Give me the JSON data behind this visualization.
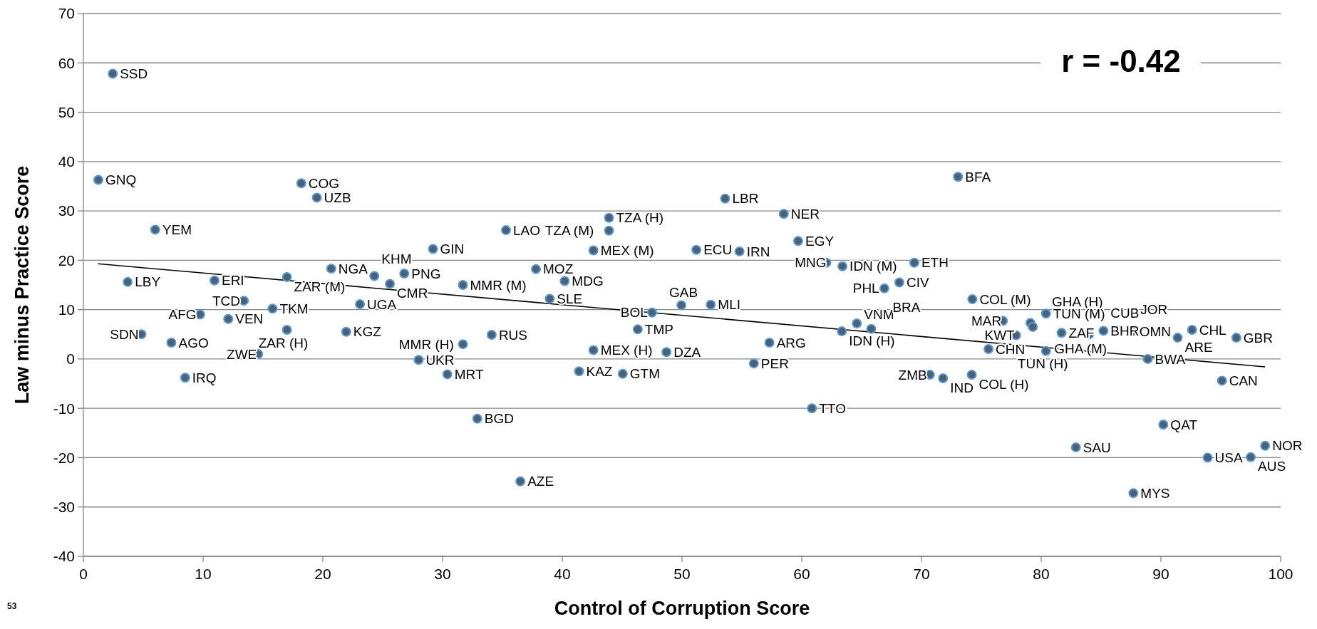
{
  "chart_data": {
    "type": "scatter",
    "xlabel": "Control of Corruption Score",
    "ylabel": "Law minus Practice Score",
    "xlim": [
      0,
      100
    ],
    "xticks": [
      0,
      10,
      20,
      30,
      40,
      50,
      60,
      70,
      80,
      90,
      100
    ],
    "ylim": [
      -40,
      70
    ],
    "yticks": [
      -40,
      -30,
      -20,
      -10,
      0,
      10,
      20,
      30,
      40,
      50,
      60,
      70
    ],
    "grid": "y",
    "marker": "circle",
    "annotations": [
      "r = -0.42",
      "53"
    ],
    "series": [
      {
        "color": "#4a6177",
        "x": [
          2.45,
          1.25,
          18.2,
          19.5,
          6.0,
          29.2,
          35.3,
          3.7,
          10.95,
          17.0,
          20.7,
          24.3,
          25.6,
          26.8,
          31.7,
          13.4,
          15.8,
          23.1,
          9.75,
          12.1,
          4.85,
          7.35,
          17.0,
          21.95,
          14.6,
          8.5,
          28.0,
          30.4,
          31.7,
          34.1,
          32.9,
          43.9,
          43.9,
          42.6,
          53.6,
          58.5,
          51.2,
          54.8,
          59.7,
          62.05,
          63.4,
          69.4,
          68.15,
          66.9,
          37.8,
          40.2,
          38.95,
          49.95,
          52.4,
          47.5,
          46.3,
          42.6,
          48.7,
          41.4,
          45.05,
          57.3,
          56.0,
          60.85,
          36.5,
          64.6,
          63.35,
          65.8,
          74.25,
          73.05,
          76.8,
          79.1,
          79.3,
          77.9,
          80.4,
          81.7,
          84.0,
          85.2,
          86.5,
          87.6,
          91.4,
          92.6,
          96.3,
          75.6,
          80.4,
          88.9,
          95.1,
          70.7,
          71.8,
          74.2,
          90.2,
          82.9,
          98.7,
          93.9,
          97.5,
          87.7
        ],
        "values": [
          57.8,
          36.3,
          35.6,
          32.7,
          26.2,
          22.3,
          26.1,
          15.6,
          15.9,
          16.6,
          18.3,
          16.8,
          15.2,
          17.3,
          15.0,
          11.8,
          10.2,
          11.1,
          9.0,
          8.1,
          5.0,
          3.3,
          5.9,
          5.5,
          1.0,
          -3.8,
          -0.2,
          -3.1,
          3.0,
          4.9,
          -12.1,
          28.6,
          26.0,
          22.0,
          32.5,
          29.4,
          22.1,
          21.8,
          23.9,
          19.5,
          18.8,
          19.5,
          15.5,
          14.3,
          18.2,
          15.8,
          12.2,
          10.9,
          11.0,
          9.4,
          6.0,
          1.8,
          1.4,
          -2.5,
          -3.0,
          3.3,
          -0.9,
          -10.0,
          -24.8,
          7.2,
          5.6,
          6.1,
          12.1,
          36.9,
          7.7,
          7.3,
          6.5,
          4.8,
          9.2,
          5.3,
          5.0,
          5.7,
          5.7,
          5.6,
          4.3,
          5.9,
          4.3,
          2.0,
          1.6,
          0.0,
          -4.4,
          -3.2,
          -3.9,
          -3.2,
          -13.3,
          -17.9,
          -17.6,
          -20.0,
          -19.9,
          -27.2
        ],
        "value_labels": [
          "SSD",
          "GNQ",
          "COG",
          "UZB",
          "YEM",
          "GIN",
          "LAO",
          "LBY",
          "ERI",
          "ZAR (M)",
          "NGA",
          "KHM",
          "CMR",
          "PNG",
          "MMR (M)",
          "TCD",
          "TKM",
          "UGA",
          "AFG",
          "VEN",
          "SDN",
          "AGO",
          "ZAR (H)",
          "KGZ",
          "ZWE",
          "IRQ",
          "UKR",
          "MRT",
          "MMR (H)",
          "RUS",
          "BGD",
          "TZA (H)",
          "TZA (M)",
          "MEX (M)",
          "LBR",
          "NER",
          "ECU",
          "IRN",
          "EGY",
          "MNG",
          "IDN (M)",
          "ETH",
          "CIV",
          "PHL",
          "MOZ",
          "MDG",
          "SLE",
          "GAB",
          "MLI",
          "BOL",
          "TMP",
          "MEX (H)",
          "DZA",
          "KAZ",
          "GTM",
          "ARG",
          "PER",
          "TTO",
          "AZE",
          "VNM",
          "IDN (H)",
          "BRA",
          "COL (M)",
          "BFA",
          "MAR",
          "GHA (H)",
          "GHA (M)",
          "KWT",
          "TUN (M)",
          "ZAF",
          "CUB",
          "BHR",
          "JOR",
          "OMN",
          "ARE",
          "CHL",
          "GBR",
          "CHN",
          "TUN (H)",
          "BWA",
          "CAN",
          "ZMB",
          "IND",
          "COL (H)",
          "QAT",
          "SAU",
          "NOR",
          "USA",
          "AUS",
          "MYS"
        ]
      },
      {
        "type": "line",
        "marker": "none",
        "color": "#000000",
        "x": [
          1.2,
          98.7
        ],
        "values": [
          19.3,
          -1.6
        ]
      }
    ]
  }
}
